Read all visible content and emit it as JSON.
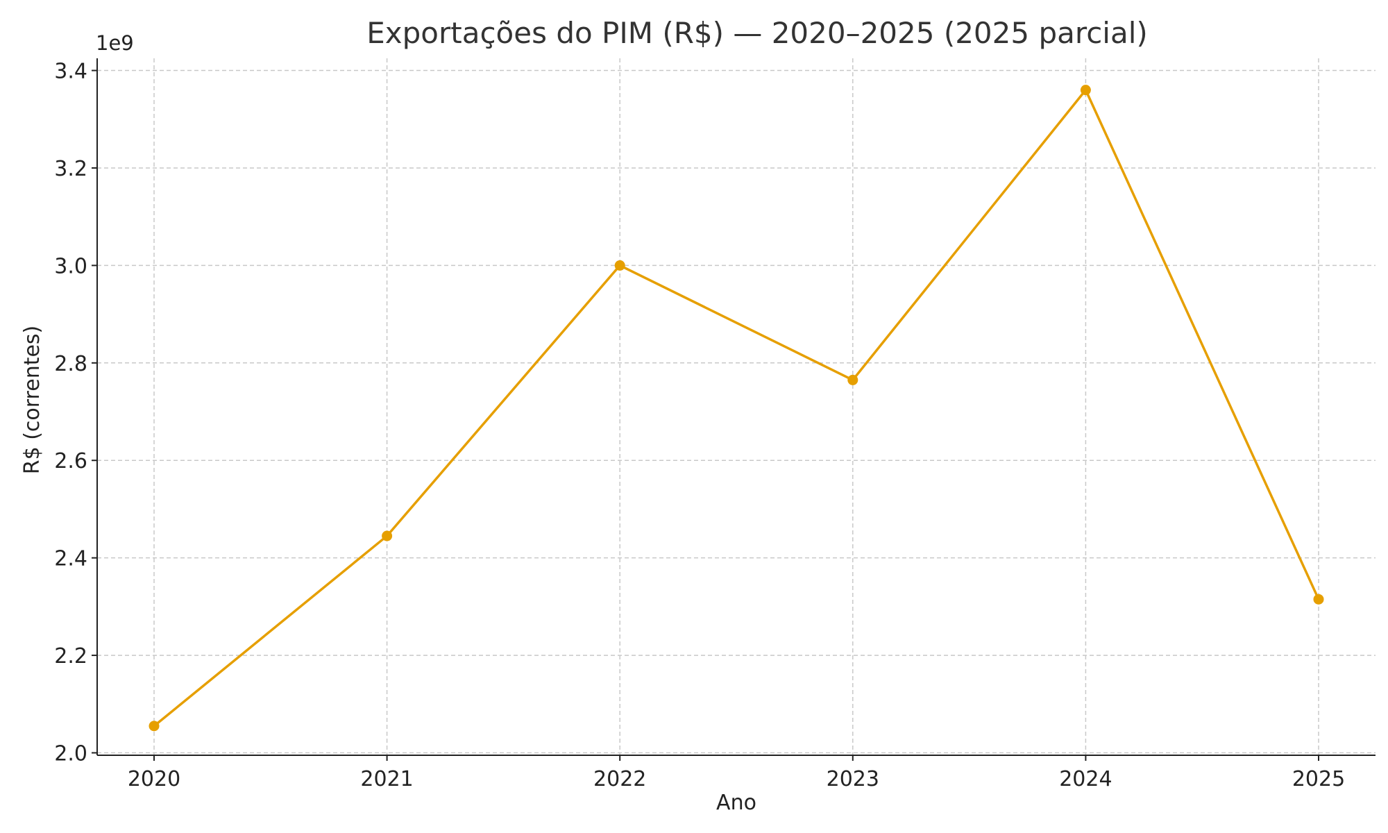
{
  "chart_data": {
    "type": "line",
    "title": "Exportações do PIM (R$) — 2020–2025 (2025 parcial)",
    "xlabel": "Ano",
    "ylabel": "R$ (correntes)",
    "y_offset_label": "1e9",
    "categories": [
      "2020",
      "2021",
      "2022",
      "2023",
      "2024",
      "2025"
    ],
    "series": [
      {
        "values": [
          2055000000.0,
          2445000000.0,
          3000000000.0,
          2765000000.0,
          3360000000.0,
          2315000000.0
        ]
      }
    ],
    "ylim": [
      1995000000.0,
      3425000000.0
    ],
    "yticks": [
      2000000000.0,
      2200000000.0,
      2400000000.0,
      2600000000.0,
      2800000000.0,
      3000000000.0,
      3200000000.0,
      3400000000.0
    ],
    "ytick_labels": [
      "2.0",
      "2.2",
      "2.4",
      "2.6",
      "2.8",
      "3.0",
      "3.2",
      "3.4"
    ],
    "grid": true,
    "line_color": "#E69F00",
    "marker": "circle"
  }
}
